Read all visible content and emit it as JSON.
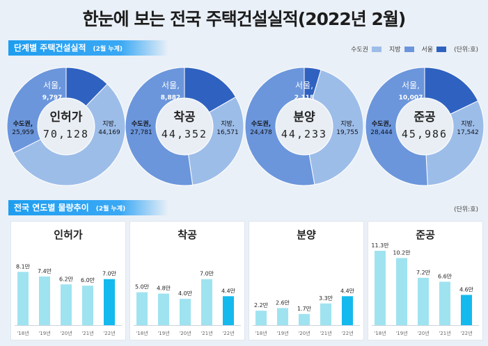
{
  "title": "한눈에 보는 전국 주택건설실적(2022년 2월)",
  "section1": {
    "label": "단계별 주택건설실적",
    "sub": "(2월 누계)"
  },
  "legend": {
    "items": [
      {
        "label": "수도권",
        "color": "#9dbde9"
      },
      {
        "label": "지방",
        "color": "#6b96dc"
      },
      {
        "label": "서울",
        "color": "#2f62c0"
      }
    ],
    "unit": "(단위:호)"
  },
  "section2": {
    "label": "전국 연도별 물량추이",
    "sub": "(2월 누계)"
  },
  "unit2": "(단위:호)",
  "chart_data": [
    {
      "type": "pie",
      "title": "인허가",
      "total": "70,128",
      "slices": [
        {
          "name": "서울",
          "label": "서울,",
          "value": 9797,
          "value_label": "9,797"
        },
        {
          "name": "지방",
          "label": "지방,",
          "value": 44169,
          "value_label": "44,169"
        },
        {
          "name": "수도권",
          "label": "수도권,",
          "value": 25959,
          "value_label": "25,959"
        }
      ]
    },
    {
      "type": "pie",
      "title": "착공",
      "total": "44,352",
      "slices": [
        {
          "name": "서울",
          "label": "서울,",
          "value": 8882,
          "value_label": "8,882"
        },
        {
          "name": "지방",
          "label": "지방,",
          "value": 16571,
          "value_label": "16,571"
        },
        {
          "name": "수도권",
          "label": "수도권,",
          "value": 27781,
          "value_label": "27,781"
        }
      ]
    },
    {
      "type": "pie",
      "title": "분양",
      "total": "44,233",
      "slices": [
        {
          "name": "서울",
          "label": "서울,",
          "value": 2118,
          "value_label": "2,118"
        },
        {
          "name": "지방",
          "label": "지방,",
          "value": 19755,
          "value_label": "19,755"
        },
        {
          "name": "수도권",
          "label": "수도권,",
          "value": 24478,
          "value_label": "24,478"
        }
      ]
    },
    {
      "type": "pie",
      "title": "준공",
      "total": "45,986",
      "slices": [
        {
          "name": "서울",
          "label": "서울,",
          "value": 10007,
          "value_label": "10,007"
        },
        {
          "name": "지방",
          "label": "지방,",
          "value": 17542,
          "value_label": "17,542"
        },
        {
          "name": "수도권",
          "label": "수도권,",
          "value": 28444,
          "value_label": "28,444"
        }
      ]
    },
    {
      "type": "bar",
      "title": "인허가",
      "categories": [
        "'18년",
        "'19년",
        "'20년",
        "'21년",
        "'22년"
      ],
      "values": [
        8.1,
        7.4,
        6.2,
        6.0,
        7.0
      ],
      "value_labels": [
        "8.1만",
        "7.4만",
        "6.2만",
        "6.0만",
        "7.0만"
      ]
    },
    {
      "type": "bar",
      "title": "착공",
      "categories": [
        "'18년",
        "'19년",
        "'20년",
        "'21년",
        "'22년"
      ],
      "values": [
        5.0,
        4.8,
        4.0,
        7.0,
        4.4
      ],
      "value_labels": [
        "5.0만",
        "4.8만",
        "4.0만",
        "7.0만",
        "4.4만"
      ]
    },
    {
      "type": "bar",
      "title": "분양",
      "categories": [
        "'18년",
        "'19년",
        "'20년",
        "'21년",
        "'22년"
      ],
      "values": [
        2.2,
        2.6,
        1.7,
        3.3,
        4.4
      ],
      "value_labels": [
        "2.2만",
        "2.6만",
        "1.7만",
        "3.3만",
        "4.4만"
      ]
    },
    {
      "type": "bar",
      "title": "준공",
      "categories": [
        "'18년",
        "'19년",
        "'20년",
        "'21년",
        "'22년"
      ],
      "values": [
        11.3,
        10.2,
        7.2,
        6.6,
        4.6
      ],
      "value_labels": [
        "11.3만",
        "10.2만",
        "7.2만",
        "6.6만",
        "4.6만"
      ]
    }
  ],
  "colors": {
    "bar_past": "#9fe3f0",
    "bar_current": "#14b9ee",
    "donut_light": "#9dbde9",
    "donut_mid": "#6b96dc",
    "donut_dark": "#2f62c0"
  }
}
